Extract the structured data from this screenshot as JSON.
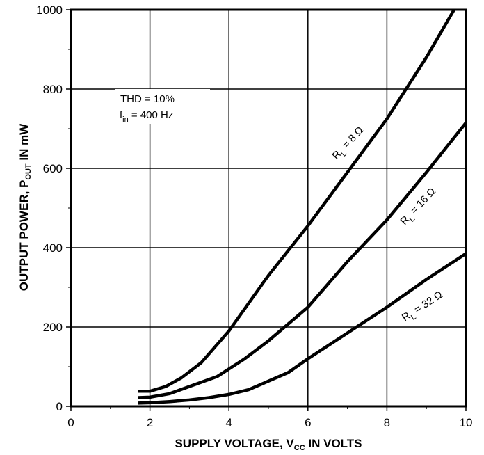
{
  "chart_data": {
    "type": "line",
    "xlabel": {
      "main": "SUPPLY VOLTAGE, V",
      "sub": "CC",
      "tail": " IN VOLTS"
    },
    "ylabel": {
      "main": "OUTPUT POWER, P",
      "sub": "OUT",
      "tail": " IN mW"
    },
    "xlim": [
      0,
      10
    ],
    "ylim": [
      0,
      1000
    ],
    "x_ticks": [
      "0",
      "2",
      "4",
      "6",
      "8",
      "10"
    ],
    "y_ticks": [
      "0",
      "200",
      "400",
      "600",
      "800",
      "1000"
    ],
    "grid": true,
    "annotation": {
      "line1": "THD = 10%",
      "line2_main": "f",
      "line2_sub": "in",
      "line2_tail": " = 400 Hz"
    },
    "series": [
      {
        "name": "R_L = 8 Ω",
        "label_main": "R",
        "label_sub": "L",
        "label_tail": " = 8 Ω",
        "x": [
          1.7,
          2.0,
          2.4,
          2.8,
          3.3,
          4.0,
          5.0,
          6.0,
          7.0,
          8.0,
          9.0,
          9.7
        ],
        "y": [
          38,
          38,
          50,
          72,
          110,
          190,
          330,
          455,
          590,
          725,
          880,
          1000
        ]
      },
      {
        "name": "R_L = 16 Ω",
        "label_main": "R",
        "label_sub": "L",
        "label_tail": " = 16 Ω",
        "x": [
          1.7,
          2.0,
          2.5,
          3.0,
          3.7,
          4.4,
          5.0,
          6.0,
          7.0,
          8.0,
          9.0,
          10.0
        ],
        "y": [
          22,
          23,
          32,
          50,
          75,
          120,
          165,
          250,
          365,
          470,
          590,
          715
        ]
      },
      {
        "name": "R_L = 32 Ω",
        "label_main": "R",
        "label_sub": "L",
        "label_tail": " = 32 Ω",
        "x": [
          1.7,
          2.0,
          2.5,
          3.0,
          3.5,
          4.0,
          4.5,
          5.5,
          6.0,
          7.0,
          8.0,
          9.0,
          10.0
        ],
        "y": [
          8,
          9,
          12,
          16,
          22,
          30,
          42,
          85,
          120,
          185,
          250,
          320,
          385
        ]
      }
    ]
  }
}
